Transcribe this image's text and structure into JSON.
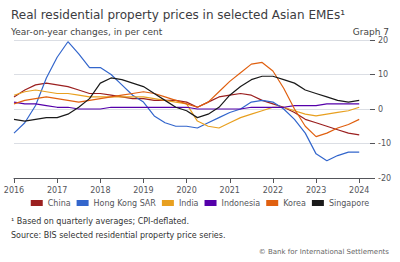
{
  "chart_data": {
    "type": "line",
    "title": "Real residential property prices in selected Asian EMEs¹",
    "subtitle": "Year-on-year changes, in per cent",
    "annotations": [
      "Graph 7",
      "¹ Based on quarterly averages; CPI-deflated.",
      "Source: BIS selected residential property price series.",
      "© Bank for International Settlements"
    ],
    "x": [
      2016.0,
      2016.25,
      2016.5,
      2016.75,
      2017.0,
      2017.25,
      2017.5,
      2017.75,
      2018.0,
      2018.25,
      2018.5,
      2018.75,
      2019.0,
      2019.25,
      2019.5,
      2019.75,
      2020.0,
      2020.25,
      2020.5,
      2020.75,
      2021.0,
      2021.25,
      2021.5,
      2021.75,
      2022.0,
      2022.25,
      2022.5,
      2022.75,
      2023.0,
      2023.25,
      2023.5,
      2023.75,
      2024.0
    ],
    "series": [
      {
        "name": "China",
        "color": "#9B2020",
        "values": [
          3.5,
          5.5,
          7.0,
          7.5,
          7.0,
          6.5,
          5.5,
          4.5,
          4.5,
          4.0,
          3.5,
          3.0,
          3.0,
          2.5,
          2.5,
          2.5,
          2.0,
          0.5,
          2.0,
          3.5,
          4.0,
          4.5,
          4.0,
          2.5,
          1.5,
          0.5,
          -1.0,
          -3.0,
          -4.0,
          -5.0,
          -6.0,
          -7.0,
          -7.5
        ]
      },
      {
        "name": "Hong Kong SAR",
        "color": "#3366CC",
        "values": [
          -7.0,
          -4.0,
          1.0,
          9.0,
          15.0,
          19.5,
          16.0,
          12.0,
          12.0,
          10.0,
          7.0,
          4.0,
          2.0,
          -2.0,
          -4.0,
          -5.0,
          -5.0,
          -5.5,
          -4.0,
          -2.5,
          -1.0,
          0.0,
          2.0,
          2.5,
          2.0,
          0.0,
          -3.0,
          -7.0,
          -13.0,
          -15.0,
          -13.5,
          -12.5,
          -12.5
        ]
      },
      {
        "name": "India",
        "color": "#E8A020",
        "values": [
          4.0,
          5.0,
          5.5,
          5.0,
          4.5,
          4.5,
          4.0,
          3.5,
          3.5,
          3.5,
          3.5,
          3.5,
          3.5,
          3.0,
          2.5,
          2.0,
          1.5,
          -3.5,
          -5.0,
          -5.5,
          -4.0,
          -2.5,
          -1.5,
          -0.5,
          0.5,
          0.5,
          -0.5,
          -1.5,
          -2.0,
          -1.5,
          -1.0,
          -0.5,
          0.5
        ]
      },
      {
        "name": "Indonesia",
        "color": "#5500AA",
        "values": [
          2.0,
          1.5,
          1.5,
          1.0,
          0.5,
          0.5,
          0.0,
          0.0,
          0.0,
          0.5,
          0.5,
          0.5,
          0.5,
          0.5,
          0.5,
          0.5,
          0.5,
          0.0,
          0.0,
          0.0,
          0.0,
          0.0,
          0.5,
          0.5,
          0.5,
          0.5,
          1.0,
          1.0,
          1.0,
          1.5,
          1.5,
          1.5,
          1.5
        ]
      },
      {
        "name": "Korea",
        "color": "#E06010",
        "values": [
          1.5,
          2.5,
          3.0,
          3.5,
          3.0,
          2.5,
          2.0,
          2.5,
          3.0,
          3.5,
          4.0,
          4.5,
          5.0,
          4.5,
          3.5,
          2.5,
          1.5,
          0.5,
          2.0,
          5.0,
          8.0,
          10.5,
          13.0,
          13.5,
          11.0,
          6.0,
          0.0,
          -5.0,
          -8.0,
          -7.0,
          -5.5,
          -4.5,
          -3.0
        ]
      },
      {
        "name": "Singapore",
        "color": "#1A1A1A",
        "values": [
          -3.0,
          -3.5,
          -3.0,
          -2.5,
          -2.5,
          -1.5,
          0.5,
          3.0,
          7.5,
          9.0,
          8.5,
          7.5,
          6.5,
          4.5,
          2.5,
          0.5,
          -0.5,
          -2.5,
          -1.5,
          0.5,
          4.0,
          6.5,
          8.5,
          9.5,
          9.5,
          8.5,
          7.5,
          5.5,
          4.5,
          3.5,
          2.5,
          2.0,
          2.5
        ]
      }
    ],
    "xlim": [
      2016.0,
      2024.25
    ],
    "xticks": [
      2016,
      2017,
      2018,
      2019,
      2020,
      2021,
      2022,
      2023,
      2024
    ],
    "ylim": [
      -20,
      20
    ],
    "yticks": [
      -20,
      -10,
      0,
      10,
      20
    ],
    "grid": true,
    "legend": "bottom"
  }
}
